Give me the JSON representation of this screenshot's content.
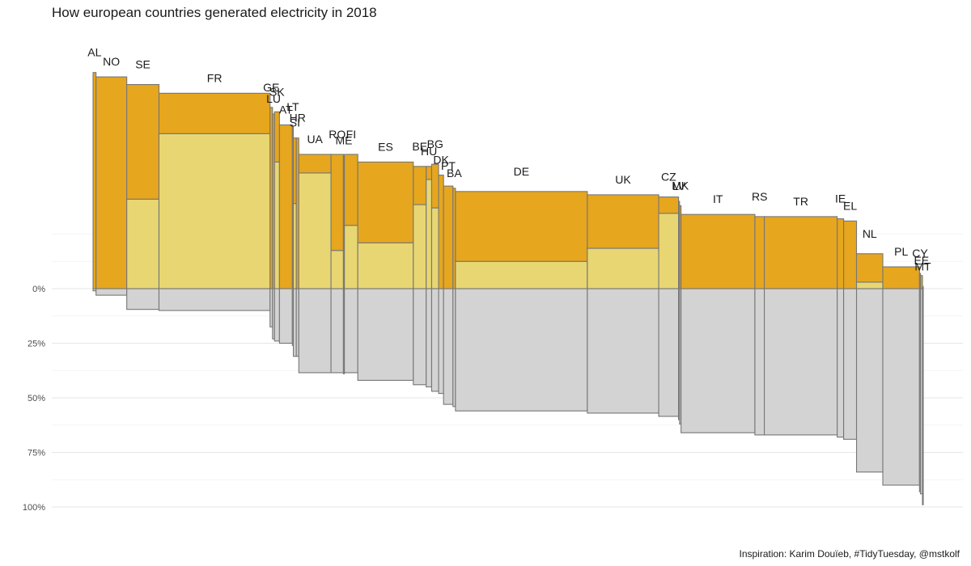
{
  "chart_data": {
    "type": "mosaic",
    "title": "How european countries generated electricity in 2018",
    "caption": "Inspiration: Karim Douïeb, #TidyTuesday, @mstkolf",
    "yticks": [
      "0%",
      "25%",
      "50%",
      "75%",
      "100%"
    ],
    "ylim": [
      -1.0,
      1.0
    ],
    "grid": true,
    "colors": {
      "renewable": "#E6A61E",
      "nuclear": "#E8D672",
      "conventional": "#D3D3D3",
      "border": "#767676"
    },
    "countries": [
      {
        "code": "AL",
        "share": 0.003,
        "renewable": 0.99,
        "nuclear": 0.0,
        "conventional": 0.01
      },
      {
        "code": "NO",
        "share": 0.031,
        "renewable": 0.97,
        "nuclear": 0.0,
        "conventional": 0.03
      },
      {
        "code": "SE",
        "share": 0.0325,
        "renewable": 0.525,
        "nuclear": 0.41,
        "conventional": 0.095
      },
      {
        "code": "FR",
        "share": 0.112,
        "renewable": 0.185,
        "nuclear": 0.71,
        "conventional": 0.1
      },
      {
        "code": "GE",
        "share": 0.0025,
        "renewable": 0.83,
        "nuclear": 0.0,
        "conventional": 0.175
      },
      {
        "code": "LU",
        "share": 0.002,
        "renewable": 0.8,
        "nuclear": 0.0,
        "conventional": 0.23
      },
      {
        "code": "SK",
        "share": 0.005,
        "renewable": 0.23,
        "nuclear": 0.58,
        "conventional": 0.24
      },
      {
        "code": "AT",
        "share": 0.013,
        "renewable": 0.75,
        "nuclear": 0.0,
        "conventional": 0.25
      },
      {
        "code": "LT",
        "share": 0.001,
        "renewable": 0.74,
        "nuclear": 0.0,
        "conventional": 0.26
      },
      {
        "code": "SI",
        "share": 0.003,
        "renewable": 0.3,
        "nuclear": 0.39,
        "conventional": 0.31
      },
      {
        "code": "HR",
        "share": 0.0025,
        "renewable": 0.69,
        "nuclear": 0.0,
        "conventional": 0.31
      },
      {
        "code": "UA",
        "share": 0.0325,
        "renewable": 0.085,
        "nuclear": 0.53,
        "conventional": 0.385
      },
      {
        "code": "RO",
        "share": 0.0125,
        "renewable": 0.44,
        "nuclear": 0.175,
        "conventional": 0.385
      },
      {
        "code": "ME",
        "share": 0.001,
        "renewable": 0.61,
        "nuclear": 0.0,
        "conventional": 0.39
      },
      {
        "code": "FI",
        "share": 0.0135,
        "renewable": 0.325,
        "nuclear": 0.29,
        "conventional": 0.385
      },
      {
        "code": "ES",
        "share": 0.056,
        "renewable": 0.37,
        "nuclear": 0.21,
        "conventional": 0.42
      },
      {
        "code": "BE",
        "share": 0.013,
        "renewable": 0.175,
        "nuclear": 0.385,
        "conventional": 0.44
      },
      {
        "code": "HU",
        "share": 0.0055,
        "renewable": 0.06,
        "nuclear": 0.5,
        "conventional": 0.45
      },
      {
        "code": "BG",
        "share": 0.007,
        "renewable": 0.2,
        "nuclear": 0.37,
        "conventional": 0.47
      },
      {
        "code": "DK",
        "share": 0.005,
        "renewable": 0.52,
        "nuclear": 0.0,
        "conventional": 0.48
      },
      {
        "code": "PT",
        "share": 0.0095,
        "renewable": 0.47,
        "nuclear": 0.0,
        "conventional": 0.53
      },
      {
        "code": "BA",
        "share": 0.0025,
        "renewable": 0.46,
        "nuclear": 0.0,
        "conventional": 0.54
      },
      {
        "code": "DE",
        "share": 0.133,
        "renewable": 0.32,
        "nuclear": 0.125,
        "conventional": 0.56
      },
      {
        "code": "UK",
        "share": 0.072,
        "renewable": 0.245,
        "nuclear": 0.185,
        "conventional": 0.57
      },
      {
        "code": "CZ",
        "share": 0.02,
        "renewable": 0.075,
        "nuclear": 0.345,
        "conventional": 0.585
      },
      {
        "code": "LV",
        "share": 0.001,
        "renewable": 0.4,
        "nuclear": 0.0,
        "conventional": 0.6
      },
      {
        "code": "MK",
        "share": 0.0015,
        "renewable": 0.38,
        "nuclear": 0.0,
        "conventional": 0.62
      },
      {
        "code": "IT",
        "share": 0.0745,
        "renewable": 0.34,
        "nuclear": 0.0,
        "conventional": 0.66
      },
      {
        "code": "RS",
        "share": 0.0095,
        "renewable": 0.33,
        "nuclear": 0.0,
        "conventional": 0.67
      },
      {
        "code": "TR",
        "share": 0.0735,
        "renewable": 0.33,
        "nuclear": 0.0,
        "conventional": 0.67
      },
      {
        "code": "IE",
        "share": 0.0065,
        "renewable": 0.32,
        "nuclear": 0.0,
        "conventional": 0.68
      },
      {
        "code": "EL",
        "share": 0.013,
        "renewable": 0.31,
        "nuclear": 0.0,
        "conventional": 0.69
      },
      {
        "code": "NL",
        "share": 0.0265,
        "renewable": 0.13,
        "nuclear": 0.03,
        "conventional": 0.84
      },
      {
        "code": "PL",
        "share": 0.037,
        "renewable": 0.1,
        "nuclear": 0.0,
        "conventional": 0.9
      },
      {
        "code": "CY",
        "share": 0.001,
        "renewable": 0.07,
        "nuclear": 0.0,
        "conventional": 0.93
      },
      {
        "code": "EE",
        "share": 0.002,
        "renewable": 0.06,
        "nuclear": 0.0,
        "conventional": 0.94
      },
      {
        "code": "MT",
        "share": 0.0008,
        "renewable": 0.01,
        "nuclear": 0.0,
        "conventional": 0.99
      }
    ]
  }
}
